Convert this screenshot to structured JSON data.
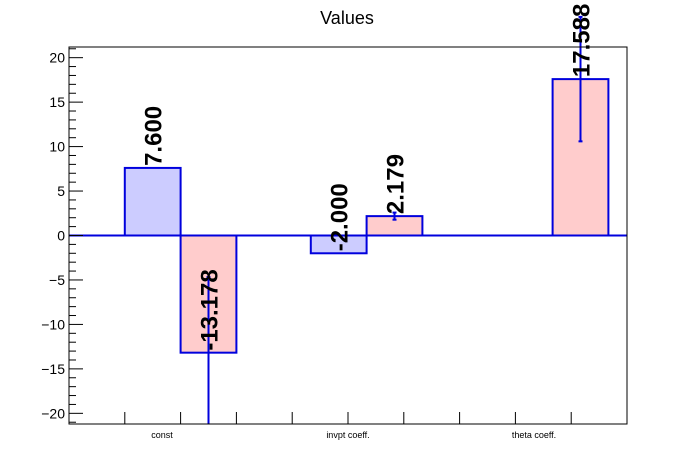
{
  "chart_data": {
    "type": "bar",
    "title": "Values",
    "xlabel": "",
    "ylabel": "",
    "ylim": [
      -21.2,
      21.2
    ],
    "y_ticks": [
      -20,
      -15,
      -10,
      -5,
      0,
      5,
      10,
      15,
      20
    ],
    "y_tick_labels": [
      "−20",
      "−15",
      "−10",
      "−5",
      "0",
      "5",
      "10",
      "15",
      "20"
    ],
    "categories": [
      "const",
      "invpt coeff.",
      "theta coeff."
    ],
    "bars": [
      {
        "category": "const",
        "slot": 0,
        "value": 7.6,
        "label": "7.600",
        "color": "#ccccff",
        "err": null
      },
      {
        "category": "const",
        "slot": 1,
        "value": -13.178,
        "label": "-13.178",
        "color": "#ffcccc",
        "err": 8.5
      },
      {
        "category": "invpt coeff.",
        "slot": 0,
        "value": -2.0,
        "label": "-2.000",
        "color": "#ccccff",
        "err": null
      },
      {
        "category": "invpt coeff.",
        "slot": 1,
        "value": 2.179,
        "label": "2.179",
        "color": "#ffcccc",
        "err": 0.4
      },
      {
        "category": "theta coeff.",
        "slot": 1,
        "value": 17.588,
        "label": "17.588",
        "color": "#ffcccc",
        "err": 7.0
      }
    ],
    "line_color": "#0000dd",
    "grid": false,
    "legend": "none"
  }
}
